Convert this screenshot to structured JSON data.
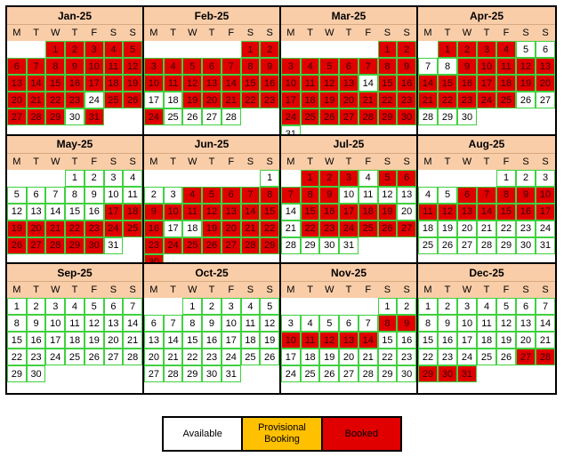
{
  "weekday_headers": [
    "M",
    "T",
    "W",
    "T",
    "F",
    "S",
    "S"
  ],
  "colors": {
    "available": "#ffffff",
    "provisional": "#ffc000",
    "booked": "#e00000",
    "header": "#f9cda8",
    "cell_border": "#3fd13f"
  },
  "legend": {
    "available": "Available",
    "provisional": "Provisional Booking",
    "booked": "Booked"
  },
  "months": [
    {
      "label": "Jan-25",
      "start_weekday": 2,
      "days": 31,
      "booked": [
        1,
        2,
        3,
        4,
        5,
        6,
        7,
        8,
        9,
        10,
        11,
        12,
        13,
        14,
        15,
        16,
        17,
        18,
        19,
        20,
        21,
        22,
        23,
        25,
        26,
        27,
        28,
        29,
        31
      ],
      "provisional": []
    },
    {
      "label": "Feb-25",
      "start_weekday": 5,
      "days": 28,
      "booked": [
        1,
        2,
        3,
        4,
        5,
        6,
        7,
        8,
        9,
        10,
        11,
        12,
        13,
        14,
        15,
        16,
        19,
        20,
        21,
        22,
        23,
        24
      ],
      "provisional": []
    },
    {
      "label": "Mar-25",
      "start_weekday": 5,
      "days": 31,
      "booked": [
        1,
        2,
        3,
        4,
        5,
        6,
        7,
        8,
        9,
        10,
        11,
        12,
        13,
        15,
        16,
        17,
        18,
        19,
        20,
        21,
        22,
        23,
        24,
        25,
        26,
        27,
        28,
        29,
        30
      ],
      "provisional": []
    },
    {
      "label": "Apr-25",
      "start_weekday": 1,
      "days": 30,
      "booked": [
        1,
        2,
        3,
        4,
        9,
        10,
        11,
        12,
        13,
        14,
        15,
        16,
        17,
        18,
        19,
        20,
        21,
        22,
        23,
        24,
        25
      ],
      "provisional": []
    },
    {
      "label": "May-25",
      "start_weekday": 3,
      "days": 31,
      "booked": [
        17,
        18,
        19,
        20,
        21,
        22,
        23,
        24,
        25,
        26,
        27,
        28,
        29,
        30
      ],
      "provisional": []
    },
    {
      "label": "Jun-25",
      "start_weekday": 6,
      "days": 30,
      "booked": [
        4,
        5,
        6,
        7,
        8,
        9,
        10,
        11,
        12,
        13,
        14,
        15,
        16,
        19,
        20,
        21,
        22,
        23,
        24,
        25,
        26,
        27,
        28,
        29,
        30
      ],
      "provisional": []
    },
    {
      "label": "Jul-25",
      "start_weekday": 1,
      "days": 31,
      "booked": [
        1,
        2,
        3,
        5,
        6,
        7,
        8,
        9,
        15,
        16,
        17,
        18,
        19,
        22,
        23,
        24,
        25,
        26,
        27
      ],
      "provisional": []
    },
    {
      "label": "Aug-25",
      "start_weekday": 4,
      "days": 31,
      "booked": [
        6,
        7,
        8,
        9,
        10,
        11,
        12,
        13,
        14,
        15,
        16,
        17
      ],
      "provisional": []
    },
    {
      "label": "Sep-25",
      "start_weekday": 0,
      "days": 30,
      "booked": [],
      "provisional": []
    },
    {
      "label": "Oct-25",
      "start_weekday": 2,
      "days": 31,
      "booked": [],
      "provisional": []
    },
    {
      "label": "Nov-25",
      "start_weekday": 5,
      "days": 30,
      "booked": [
        8,
        9,
        10,
        11,
        12,
        13,
        14
      ],
      "provisional": []
    },
    {
      "label": "Dec-25",
      "start_weekday": 0,
      "days": 31,
      "booked": [
        27,
        28,
        29,
        30,
        31
      ],
      "provisional": []
    }
  ]
}
